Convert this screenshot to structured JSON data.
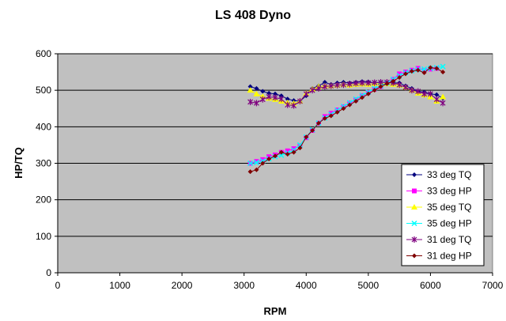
{
  "chart_data": {
    "type": "line",
    "title": "LS 408 Dyno",
    "xlabel": "RPM",
    "ylabel": "HP/TQ",
    "xlim": [
      0,
      7000
    ],
    "ylim": [
      0,
      600
    ],
    "xticks": [
      "0",
      "1000",
      "2000",
      "3000",
      "4000",
      "5000",
      "6000",
      "7000"
    ],
    "yticks": [
      "0",
      "100",
      "200",
      "300",
      "400",
      "500",
      "600"
    ],
    "grid": "horizontal",
    "legend_position": "right",
    "series": [
      {
        "name": "33 deg TQ",
        "color": "#00007f",
        "marker": "diamond",
        "points": [
          [
            3100,
            510
          ],
          [
            3200,
            505
          ],
          [
            3300,
            497
          ],
          [
            3400,
            492
          ],
          [
            3500,
            490
          ],
          [
            3600,
            485
          ],
          [
            3700,
            476
          ],
          [
            3800,
            472
          ],
          [
            3900,
            470
          ],
          [
            4000,
            485
          ],
          [
            4100,
            505
          ],
          [
            4200,
            512
          ],
          [
            4300,
            522
          ],
          [
            4400,
            516
          ],
          [
            4500,
            520
          ],
          [
            4600,
            522
          ],
          [
            4700,
            520
          ],
          [
            4800,
            522
          ],
          [
            4900,
            524
          ],
          [
            5000,
            523
          ],
          [
            5100,
            520
          ],
          [
            5200,
            522
          ],
          [
            5300,
            521
          ],
          [
            5400,
            520
          ],
          [
            5500,
            520
          ],
          [
            5600,
            512
          ],
          [
            5700,
            505
          ],
          [
            5800,
            497
          ],
          [
            5900,
            495
          ],
          [
            6000,
            490
          ],
          [
            6100,
            488
          ],
          [
            6200,
            478
          ]
        ]
      },
      {
        "name": "33 deg HP",
        "color": "#ff00ff",
        "marker": "square",
        "points": [
          [
            3100,
            300
          ],
          [
            3200,
            305
          ],
          [
            3300,
            310
          ],
          [
            3400,
            318
          ],
          [
            3500,
            323
          ],
          [
            3600,
            330
          ],
          [
            3700,
            334
          ],
          [
            3800,
            340
          ],
          [
            3900,
            348
          ],
          [
            4000,
            370
          ],
          [
            4100,
            390
          ],
          [
            4200,
            410
          ],
          [
            4300,
            428
          ],
          [
            4400,
            437
          ],
          [
            4500,
            446
          ],
          [
            4600,
            455
          ],
          [
            4700,
            465
          ],
          [
            4800,
            474
          ],
          [
            4900,
            485
          ],
          [
            5000,
            494
          ],
          [
            5100,
            503
          ],
          [
            5200,
            510
          ],
          [
            5300,
            518
          ],
          [
            5400,
            530
          ],
          [
            5500,
            545
          ],
          [
            5600,
            550
          ],
          [
            5700,
            555
          ],
          [
            5800,
            560
          ],
          [
            5900,
            555
          ],
          [
            6000,
            558
          ],
          [
            6100,
            560
          ]
        ]
      },
      {
        "name": "35 deg TQ",
        "color": "#ffff00",
        "marker": "triangle",
        "points": [
          [
            3100,
            500
          ],
          [
            3200,
            490
          ],
          [
            3300,
            483
          ],
          [
            3400,
            478
          ],
          [
            3500,
            475
          ],
          [
            3600,
            470
          ],
          [
            3700,
            466
          ],
          [
            3800,
            464
          ],
          [
            3900,
            470
          ],
          [
            4000,
            492
          ],
          [
            4100,
            503
          ],
          [
            4200,
            510
          ],
          [
            4300,
            512
          ],
          [
            4400,
            512
          ],
          [
            4500,
            514
          ],
          [
            4600,
            516
          ],
          [
            4700,
            514
          ],
          [
            4800,
            516
          ],
          [
            4900,
            517
          ],
          [
            5000,
            516
          ],
          [
            5100,
            518
          ],
          [
            5200,
            519
          ],
          [
            5300,
            518
          ],
          [
            5400,
            516
          ],
          [
            5500,
            514
          ],
          [
            5600,
            508
          ],
          [
            5700,
            500
          ],
          [
            5800,
            492
          ],
          [
            5900,
            487
          ],
          [
            6000,
            482
          ],
          [
            6100,
            470
          ],
          [
            6200,
            482
          ]
        ]
      },
      {
        "name": "35 deg HP",
        "color": "#00ffff",
        "marker": "x",
        "points": [
          [
            3100,
            300
          ],
          [
            3200,
            302
          ],
          [
            3300,
            306
          ],
          [
            3400,
            312
          ],
          [
            3500,
            318
          ],
          [
            3600,
            322
          ],
          [
            3700,
            328
          ],
          [
            3800,
            336
          ],
          [
            3900,
            350
          ],
          [
            4000,
            372
          ],
          [
            4100,
            392
          ],
          [
            4200,
            410
          ],
          [
            4300,
            424
          ],
          [
            4400,
            434
          ],
          [
            4500,
            445
          ],
          [
            4600,
            456
          ],
          [
            4700,
            466
          ],
          [
            4800,
            476
          ],
          [
            4900,
            486
          ],
          [
            5000,
            495
          ],
          [
            5100,
            505
          ],
          [
            5200,
            512
          ],
          [
            5300,
            520
          ],
          [
            5400,
            530
          ],
          [
            5500,
            540
          ],
          [
            5600,
            548
          ],
          [
            5700,
            553
          ],
          [
            5800,
            557
          ],
          [
            5900,
            558
          ],
          [
            6000,
            560
          ],
          [
            6100,
            562
          ],
          [
            6200,
            565
          ]
        ]
      },
      {
        "name": "31 deg TQ",
        "color": "#7f007f",
        "marker": "star",
        "points": [
          [
            3100,
            468
          ],
          [
            3200,
            465
          ],
          [
            3300,
            475
          ],
          [
            3400,
            482
          ],
          [
            3500,
            480
          ],
          [
            3600,
            476
          ],
          [
            3700,
            460
          ],
          [
            3800,
            458
          ],
          [
            3900,
            470
          ],
          [
            4000,
            490
          ],
          [
            4100,
            500
          ],
          [
            4200,
            505
          ],
          [
            4300,
            510
          ],
          [
            4400,
            512
          ],
          [
            4500,
            514
          ],
          [
            4600,
            515
          ],
          [
            4700,
            517
          ],
          [
            4800,
            519
          ],
          [
            4900,
            520
          ],
          [
            5000,
            520
          ],
          [
            5100,
            521
          ],
          [
            5200,
            522
          ],
          [
            5300,
            522
          ],
          [
            5400,
            520
          ],
          [
            5500,
            515
          ],
          [
            5600,
            508
          ],
          [
            5700,
            500
          ],
          [
            5800,
            497
          ],
          [
            5900,
            490
          ],
          [
            6000,
            490
          ],
          [
            6100,
            475
          ],
          [
            6200,
            465
          ]
        ]
      },
      {
        "name": "31 deg HP",
        "color": "#7f0000",
        "marker": "diamond",
        "points": [
          [
            3100,
            277
          ],
          [
            3200,
            282
          ],
          [
            3300,
            300
          ],
          [
            3400,
            312
          ],
          [
            3500,
            320
          ],
          [
            3600,
            330
          ],
          [
            3700,
            325
          ],
          [
            3800,
            330
          ],
          [
            3900,
            342
          ],
          [
            4000,
            372
          ],
          [
            4100,
            390
          ],
          [
            4200,
            410
          ],
          [
            4300,
            423
          ],
          [
            4400,
            430
          ],
          [
            4500,
            440
          ],
          [
            4600,
            450
          ],
          [
            4700,
            460
          ],
          [
            4800,
            470
          ],
          [
            4900,
            480
          ],
          [
            5000,
            490
          ],
          [
            5100,
            500
          ],
          [
            5200,
            510
          ],
          [
            5300,
            518
          ],
          [
            5400,
            525
          ],
          [
            5500,
            535
          ],
          [
            5600,
            545
          ],
          [
            5700,
            552
          ],
          [
            5800,
            555
          ],
          [
            5900,
            548
          ],
          [
            6000,
            562
          ],
          [
            6100,
            560
          ],
          [
            6200,
            550
          ]
        ]
      }
    ]
  }
}
